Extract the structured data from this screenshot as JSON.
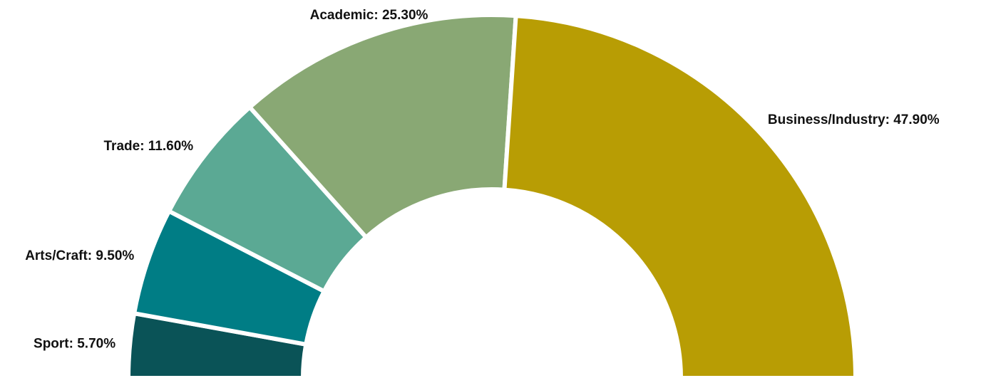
{
  "chart_data": {
    "type": "semi-donut",
    "values": [
      5.7,
      9.5,
      11.6,
      25.3,
      47.9
    ],
    "value_labels": [
      "Sport: 5.70%",
      "Arts/Craft: 9.50%",
      "Trade: 11.60%",
      "Academic: 25.30%",
      "Business/Industry: 47.90%"
    ],
    "colors": [
      "#0a5357",
      "#007d85",
      "#5ba994",
      "#89a874",
      "#b89d04"
    ]
  }
}
